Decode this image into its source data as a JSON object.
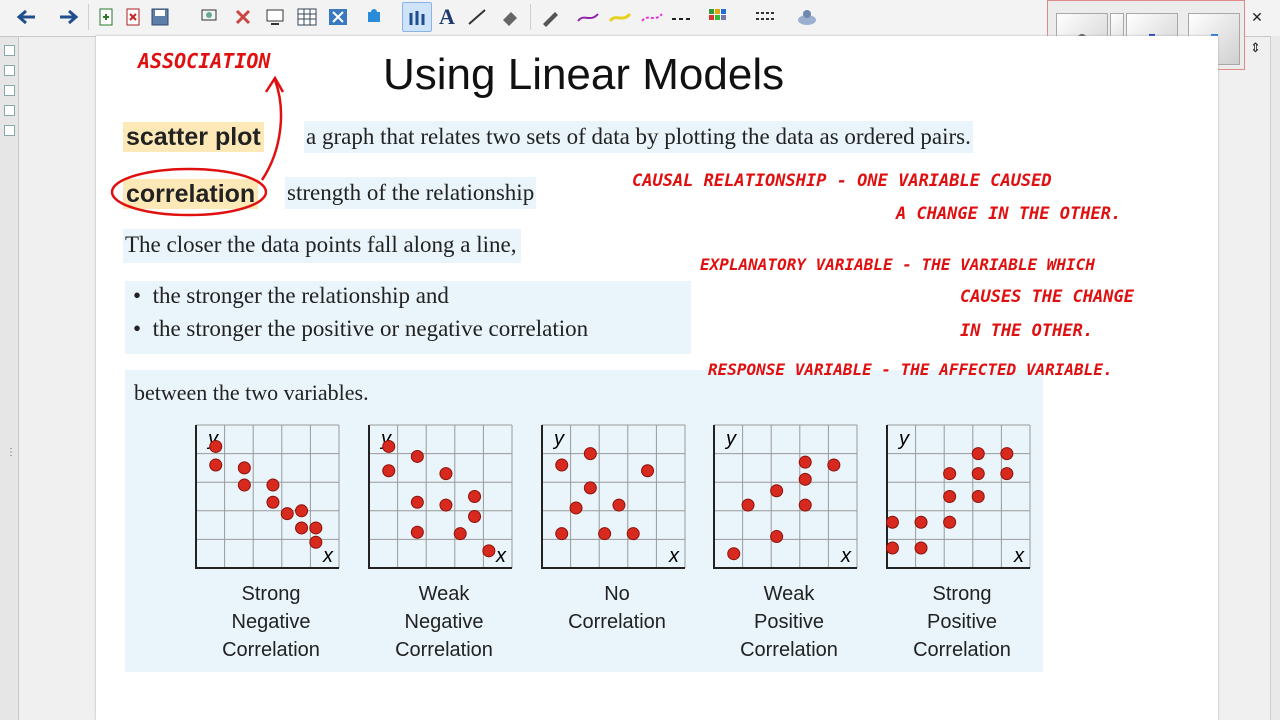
{
  "toolbar": {
    "icons": [
      "back-arrow-icon",
      "forward-arrow-icon",
      "page-add-icon",
      "page-delete-icon",
      "save-icon",
      "screen-capture-icon",
      "delete-x-icon",
      "screen-shade-icon",
      "table-icon",
      "clear-icon",
      "puzzle-icon",
      "pens-icon",
      "text-icon",
      "line-icon",
      "eraser-icon",
      "pen-icon",
      "line-style-icon",
      "highlighter-icon",
      "color-picker-icon",
      "fill-icon",
      "dashed-line-icon",
      "properties-icon"
    ]
  },
  "page": {
    "title": "Using Linear Models",
    "terms": {
      "scatter_plot": "scatter plot",
      "scatter_plot_def": "a graph that relates two sets of data by plotting the data as ordered pairs.",
      "correlation": "correlation",
      "correlation_def": "strength of the relationship"
    },
    "closer_text": "The closer the data points fall along a line,",
    "bullets": [
      "the stronger the relationship and",
      "the stronger the positive or negative correlation"
    ],
    "between_text": "between the two variables.",
    "graphs": [
      {
        "line1": "Strong",
        "line2": "Negative",
        "line3": "Correlation"
      },
      {
        "line1": "Weak",
        "line2": "Negative",
        "line3": "Correlation"
      },
      {
        "line1": "No",
        "line2": "Correlation",
        "line3": ""
      },
      {
        "line1": "Weak",
        "line2": "Positive",
        "line3": "Correlation"
      },
      {
        "line1": "Strong",
        "line2": "Positive",
        "line3": "Correlation"
      }
    ],
    "axis_x": "x",
    "axis_y": "y"
  },
  "handwriting": {
    "association": "ASSOCIATION",
    "causal_1": "CAUSAL RELATIONSHIP - ONE VARIABLE CAUSED",
    "causal_2": "A CHANGE IN THE OTHER.",
    "explanatory_1": "EXPLANATORY VARIABLE - THE VARIABLE WHICH",
    "explanatory_2": "CAUSES THE CHANGE",
    "explanatory_3": "IN THE OTHER.",
    "response": "RESPONSE VARIABLE - THE AFFECTED VARIABLE.",
    "color": "#e01010"
  },
  "colors": {
    "highlight": "#fde9b8",
    "box": "#e9f4fb",
    "dot": "#d8291e"
  }
}
